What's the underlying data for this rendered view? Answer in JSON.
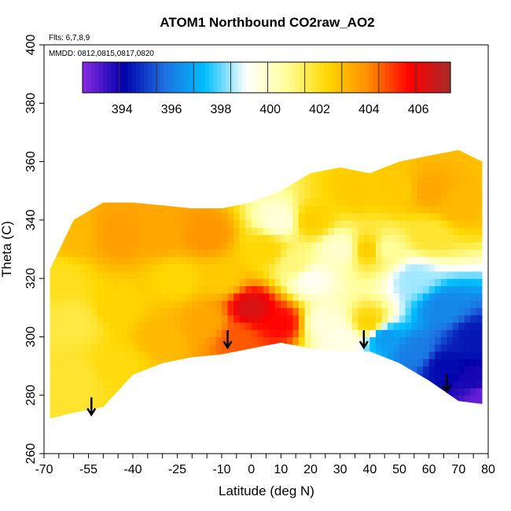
{
  "chart_data": {
    "type": "heatmap",
    "title": "ATOM1 Northbound CO2raw_AO2",
    "annotations": [
      "Flts: 6,7,8,9",
      "MMDD: 0812,0815,0817,0820"
    ],
    "xlabel": "Latitude (deg N)",
    "ylabel": "Theta (C)",
    "xlim": [
      -70,
      80
    ],
    "ylim": [
      260,
      400
    ],
    "x_ticks": [
      -70,
      -55,
      -40,
      -25,
      -10,
      0,
      10,
      20,
      30,
      40,
      50,
      60,
      70,
      80
    ],
    "y_ticks": [
      260,
      280,
      300,
      320,
      340,
      360,
      380,
      400
    ],
    "colorbar": {
      "ticks": [
        394,
        396,
        398,
        400,
        402,
        404,
        406
      ],
      "range": [
        392.4,
        407.3
      ],
      "colors": [
        "#8a2be2",
        "#0000aa",
        "#1e6fe0",
        "#00bfff",
        "#ffffff",
        "#ffff99",
        "#ffd700",
        "#ff8c00",
        "#ff0000",
        "#a52a2a"
      ]
    },
    "coverage": {
      "lat": [
        -68,
        -60,
        -50,
        -40,
        -30,
        -20,
        -10,
        0,
        10,
        20,
        30,
        40,
        50,
        60,
        70,
        78
      ],
      "theta_bottom": [
        272,
        274,
        276,
        287,
        291,
        293,
        294,
        296,
        298,
        296,
        295,
        295,
        291,
        285,
        278,
        277
      ],
      "theta_top": [
        323,
        340,
        346,
        346,
        345,
        344,
        344,
        346,
        350,
        356,
        358,
        356,
        360,
        362,
        364,
        360
      ]
    },
    "field_points": [
      {
        "lat": -60,
        "theta": 335,
        "value": 403.0
      },
      {
        "lat": -60,
        "theta": 305,
        "value": 401.6
      },
      {
        "lat": -60,
        "theta": 285,
        "value": 401.8
      },
      {
        "lat": -45,
        "theta": 335,
        "value": 403.6
      },
      {
        "lat": -45,
        "theta": 310,
        "value": 402.4
      },
      {
        "lat": -45,
        "theta": 290,
        "value": 402.2
      },
      {
        "lat": -30,
        "theta": 335,
        "value": 403.4
      },
      {
        "lat": -25,
        "theta": 320,
        "value": 402.3
      },
      {
        "lat": -30,
        "theta": 300,
        "value": 403.0
      },
      {
        "lat": -15,
        "theta": 335,
        "value": 403.8
      },
      {
        "lat": -15,
        "theta": 305,
        "value": 403.4
      },
      {
        "lat": -5,
        "theta": 300,
        "value": 404.6
      },
      {
        "lat": 0,
        "theta": 310,
        "value": 406.4
      },
      {
        "lat": 10,
        "theta": 305,
        "value": 405.6
      },
      {
        "lat": 5,
        "theta": 330,
        "value": 402.3
      },
      {
        "lat": 10,
        "theta": 340,
        "value": 399.6
      },
      {
        "lat": 15,
        "theta": 325,
        "value": 401.0
      },
      {
        "lat": 20,
        "theta": 320,
        "value": 399.2
      },
      {
        "lat": 20,
        "theta": 340,
        "value": 402.5
      },
      {
        "lat": 25,
        "theta": 305,
        "value": 399.6
      },
      {
        "lat": 30,
        "theta": 330,
        "value": 399.8
      },
      {
        "lat": 30,
        "theta": 300,
        "value": 399.4
      },
      {
        "lat": 35,
        "theta": 350,
        "value": 402.6
      },
      {
        "lat": 40,
        "theta": 330,
        "value": 402.6
      },
      {
        "lat": 40,
        "theta": 305,
        "value": 402.4
      },
      {
        "lat": 45,
        "theta": 330,
        "value": 400.6
      },
      {
        "lat": 45,
        "theta": 300,
        "value": 396.6
      },
      {
        "lat": 50,
        "theta": 350,
        "value": 402.6
      },
      {
        "lat": 55,
        "theta": 320,
        "value": 398.4
      },
      {
        "lat": 55,
        "theta": 295,
        "value": 396.0
      },
      {
        "lat": 60,
        "theta": 350,
        "value": 403.4
      },
      {
        "lat": 60,
        "theta": 335,
        "value": 401.8
      },
      {
        "lat": 65,
        "theta": 310,
        "value": 396.2
      },
      {
        "lat": 65,
        "theta": 290,
        "value": 394.2
      },
      {
        "lat": 70,
        "theta": 345,
        "value": 403.0
      },
      {
        "lat": 75,
        "theta": 300,
        "value": 394.4
      },
      {
        "lat": 75,
        "theta": 285,
        "value": 393.8
      },
      {
        "lat": 78,
        "theta": 280,
        "value": 392.8
      },
      {
        "lat": -65,
        "theta": 320,
        "value": 402.0
      },
      {
        "lat": -10,
        "theta": 320,
        "value": 402.6
      }
    ],
    "arrows": [
      {
        "lat": -54,
        "theta": 276
      },
      {
        "lat": -8,
        "theta": 299
      },
      {
        "lat": 38,
        "theta": 299
      },
      {
        "lat": 66,
        "theta": 284
      }
    ],
    "grid": false,
    "legend": "top colorbar inside plot"
  }
}
